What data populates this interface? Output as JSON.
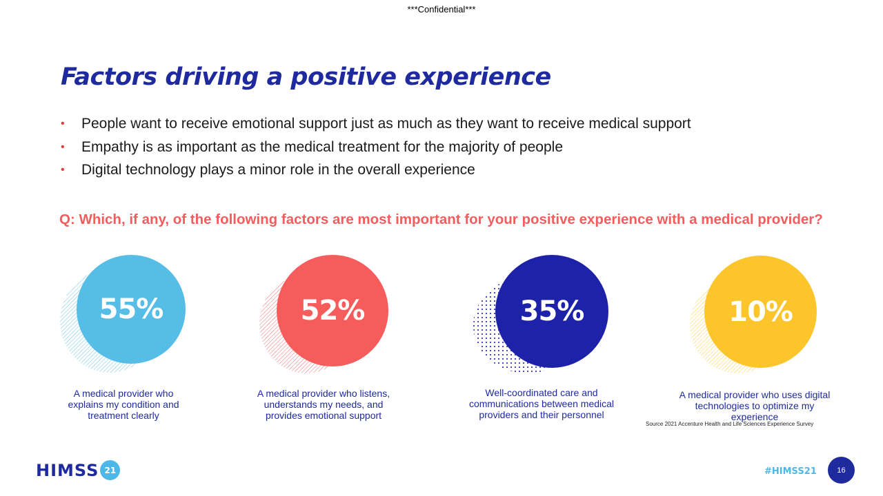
{
  "header": {
    "confidential": "***Confidential***"
  },
  "slide": {
    "title": "Factors driving a positive experience",
    "bullets": [
      "People want to receive emotional support just as much as they want to receive medical support",
      "Empathy is as important as the medical treatment for the majority of people",
      "Digital technology plays a minor role in the overall experience"
    ],
    "bullet_marker": "•",
    "question": "Q: Which, if any, of the following factors are most important for your positive experience with a medical provider?"
  },
  "stats": [
    {
      "percent": "55%",
      "value": 55,
      "color": "#55bde6",
      "pattern": "diagonal-lines",
      "description": "A medical provider who explains my condition and treatment clearly"
    },
    {
      "percent": "52%",
      "value": 52,
      "color": "#f75c5c",
      "pattern": "diagonal-lines",
      "description": "A medical provider who listens, understands my needs, and provides emotional support"
    },
    {
      "percent": "35%",
      "value": 35,
      "color": "#1e22a8",
      "pattern": "dots",
      "description": "Well-coordinated care and communications between medical providers and their personnel"
    },
    {
      "percent": "10%",
      "value": 10,
      "color": "#fcc52c",
      "pattern": "diagonal-lines",
      "description": "A medical provider who uses digital technologies to optimize my experience"
    }
  ],
  "source": "Source 2021 Accenture Health and Life Sciences Experience Survey",
  "footer": {
    "logo_text": "HIMSS",
    "logo_badge": "21",
    "hashtag": "#HIMSS21",
    "page_number": "16"
  },
  "colors": {
    "brand_navy": "#1e2a9e",
    "brand_cyan": "#4db8e8",
    "accent_red": "#f35d5d"
  }
}
